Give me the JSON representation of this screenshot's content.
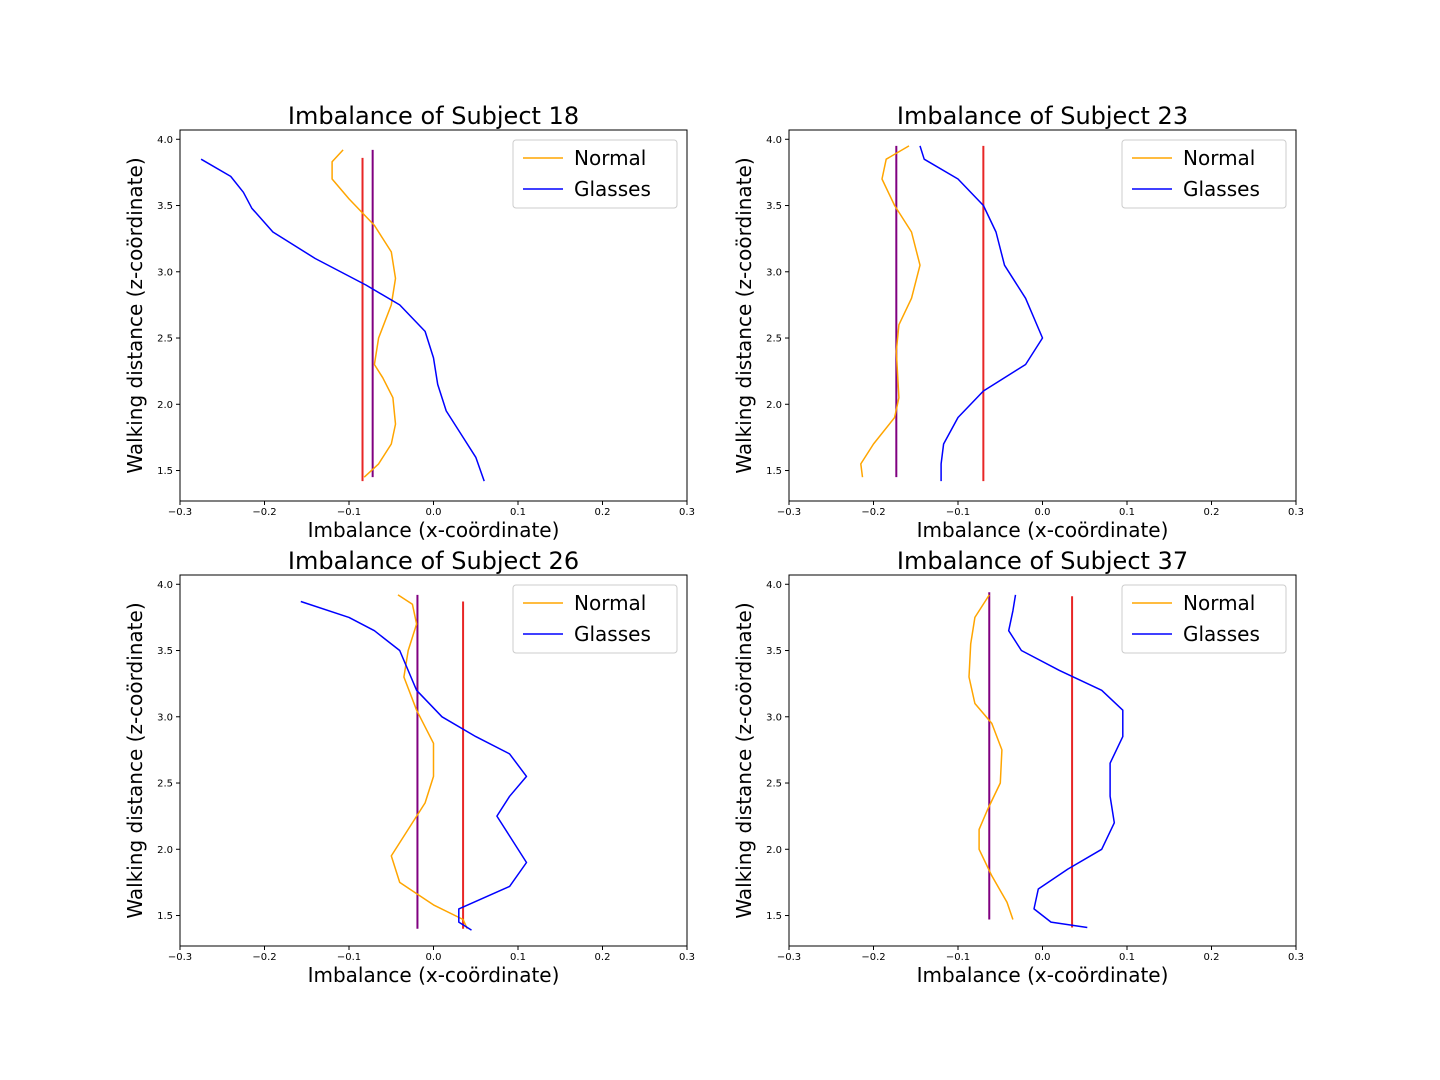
{
  "colors": {
    "normal": "#ffa500",
    "glasses": "#0000ff",
    "mean_normal": "#800080",
    "mean_glasses": "#e82626"
  },
  "chart_data": [
    {
      "type": "line",
      "title": "Imbalance of Subject 18",
      "xlabel": "Imbalance (x-coördinate)",
      "ylabel": "Walking distance (z-coördinate)",
      "xlim": [
        -0.3,
        0.3
      ],
      "ylim": [
        1.27,
        4.07
      ],
      "xticks": [
        -0.3,
        -0.2,
        -0.1,
        0.0,
        0.1,
        0.2,
        0.3
      ],
      "yticks": [
        1.5,
        2.0,
        2.5,
        3.0,
        3.5,
        4.0
      ],
      "grid": false,
      "legend_position": "top-right",
      "series": [
        {
          "name": "Normal",
          "color": "#ffa500",
          "x": [
            -0.107,
            -0.12,
            -0.12,
            -0.1,
            -0.07,
            -0.05,
            -0.045,
            -0.05,
            -0.065,
            -0.07,
            -0.06,
            -0.048,
            -0.045,
            -0.05,
            -0.065,
            -0.082
          ],
          "y": [
            3.92,
            3.83,
            3.7,
            3.55,
            3.35,
            3.15,
            2.95,
            2.75,
            2.5,
            2.3,
            2.2,
            2.05,
            1.85,
            1.7,
            1.55,
            1.45
          ]
        },
        {
          "name": "Glasses",
          "color": "#0000ff",
          "x": [
            -0.275,
            -0.24,
            -0.225,
            -0.215,
            -0.19,
            -0.14,
            -0.08,
            -0.04,
            -0.01,
            0.0,
            0.005,
            0.015,
            0.035,
            0.05,
            0.06
          ],
          "y": [
            3.85,
            3.72,
            3.6,
            3.48,
            3.3,
            3.1,
            2.9,
            2.75,
            2.55,
            2.35,
            2.15,
            1.95,
            1.75,
            1.6,
            1.42
          ]
        }
      ],
      "mean_lines": [
        {
          "x": -0.072,
          "y": [
            1.45,
            3.92
          ],
          "color": "#800080"
        },
        {
          "x": -0.084,
          "y": [
            1.42,
            3.86
          ],
          "color": "#e82626"
        }
      ]
    },
    {
      "type": "line",
      "title": "Imbalance of Subject 23",
      "xlabel": "Imbalance (x-coördinate)",
      "ylabel": "Walking distance (z-coördinate)",
      "xlim": [
        -0.3,
        0.3
      ],
      "ylim": [
        1.27,
        4.07
      ],
      "xticks": [
        -0.3,
        -0.2,
        -0.1,
        0.0,
        0.1,
        0.2,
        0.3
      ],
      "yticks": [
        1.5,
        2.0,
        2.5,
        3.0,
        3.5,
        4.0
      ],
      "grid": false,
      "legend_position": "top-right",
      "series": [
        {
          "name": "Normal",
          "color": "#ffa500",
          "x": [
            -0.158,
            -0.185,
            -0.19,
            -0.175,
            -0.155,
            -0.145,
            -0.155,
            -0.17,
            -0.173,
            -0.17,
            -0.175,
            -0.2,
            -0.215,
            -0.213
          ],
          "y": [
            3.95,
            3.85,
            3.7,
            3.5,
            3.3,
            3.05,
            2.8,
            2.6,
            2.4,
            2.05,
            1.9,
            1.7,
            1.55,
            1.45
          ]
        },
        {
          "name": "Glasses",
          "color": "#0000ff",
          "x": [
            -0.145,
            -0.14,
            -0.1,
            -0.07,
            -0.055,
            -0.045,
            -0.02,
            0.0,
            -0.02,
            -0.07,
            -0.1,
            -0.117,
            -0.12,
            -0.12
          ],
          "y": [
            3.95,
            3.85,
            3.7,
            3.5,
            3.3,
            3.05,
            2.8,
            2.5,
            2.3,
            2.1,
            1.9,
            1.7,
            1.55,
            1.42
          ]
        }
      ],
      "mean_lines": [
        {
          "x": -0.173,
          "y": [
            1.45,
            3.95
          ],
          "color": "#800080"
        },
        {
          "x": -0.07,
          "y": [
            1.42,
            3.95
          ],
          "color": "#e82626"
        }
      ]
    },
    {
      "type": "line",
      "title": "Imbalance of Subject 26",
      "xlabel": "Imbalance (x-coördinate)",
      "ylabel": "Walking distance (z-coördinate)",
      "xlim": [
        -0.3,
        0.3
      ],
      "ylim": [
        1.27,
        4.07
      ],
      "xticks": [
        -0.3,
        -0.2,
        -0.1,
        0.0,
        0.1,
        0.2,
        0.3
      ],
      "yticks": [
        1.5,
        2.0,
        2.5,
        3.0,
        3.5,
        4.0
      ],
      "grid": false,
      "legend_position": "top-right",
      "series": [
        {
          "name": "Normal",
          "color": "#ffa500",
          "x": [
            -0.042,
            -0.025,
            -0.02,
            -0.03,
            -0.035,
            -0.02,
            0.0,
            0.0,
            -0.01,
            -0.03,
            -0.05,
            -0.04,
            0.0,
            0.035,
            0.04
          ],
          "y": [
            3.92,
            3.85,
            3.7,
            3.5,
            3.3,
            3.05,
            2.8,
            2.55,
            2.35,
            2.15,
            1.95,
            1.75,
            1.58,
            1.47,
            1.4
          ]
        },
        {
          "name": "Glasses",
          "color": "#0000ff",
          "x": [
            -0.157,
            -0.1,
            -0.07,
            -0.04,
            -0.02,
            0.01,
            0.05,
            0.09,
            0.11,
            0.09,
            0.075,
            0.09,
            0.11,
            0.09,
            0.03,
            0.03,
            0.045
          ],
          "y": [
            3.87,
            3.75,
            3.65,
            3.5,
            3.2,
            3.0,
            2.85,
            2.72,
            2.55,
            2.4,
            2.25,
            2.1,
            1.9,
            1.72,
            1.55,
            1.45,
            1.39
          ]
        }
      ],
      "mean_lines": [
        {
          "x": -0.019,
          "y": [
            1.4,
            3.92
          ],
          "color": "#800080"
        },
        {
          "x": 0.035,
          "y": [
            1.4,
            3.87
          ],
          "color": "#e82626"
        }
      ]
    },
    {
      "type": "line",
      "title": "Imbalance of Subject 37",
      "xlabel": "Imbalance (x-coördinate)",
      "ylabel": "Walking distance (z-coördinate)",
      "xlim": [
        -0.3,
        0.3
      ],
      "ylim": [
        1.27,
        4.07
      ],
      "xticks": [
        -0.3,
        -0.2,
        -0.1,
        0.0,
        0.1,
        0.2,
        0.3
      ],
      "yticks": [
        1.5,
        2.0,
        2.5,
        3.0,
        3.5,
        4.0
      ],
      "grid": false,
      "legend_position": "top-right",
      "series": [
        {
          "name": "Normal",
          "color": "#ffa500",
          "x": [
            -0.063,
            -0.08,
            -0.085,
            -0.087,
            -0.08,
            -0.06,
            -0.048,
            -0.05,
            -0.065,
            -0.075,
            -0.075,
            -0.06,
            -0.042,
            -0.035
          ],
          "y": [
            3.92,
            3.75,
            3.55,
            3.3,
            3.1,
            2.95,
            2.75,
            2.5,
            2.3,
            2.15,
            2.0,
            1.8,
            1.6,
            1.47
          ]
        },
        {
          "name": "Glasses",
          "color": "#0000ff",
          "x": [
            -0.032,
            -0.035,
            -0.04,
            -0.025,
            0.02,
            0.07,
            0.095,
            0.095,
            0.08,
            0.08,
            0.085,
            0.07,
            0.03,
            -0.005,
            -0.01,
            0.01,
            0.053
          ],
          "y": [
            3.92,
            3.8,
            3.65,
            3.5,
            3.35,
            3.2,
            3.05,
            2.85,
            2.65,
            2.4,
            2.2,
            2.0,
            1.85,
            1.7,
            1.55,
            1.45,
            1.41
          ]
        }
      ],
      "mean_lines": [
        {
          "x": -0.063,
          "y": [
            1.47,
            3.94
          ],
          "color": "#800080"
        },
        {
          "x": 0.035,
          "y": [
            1.41,
            3.91
          ],
          "color": "#e82626"
        }
      ]
    }
  ]
}
